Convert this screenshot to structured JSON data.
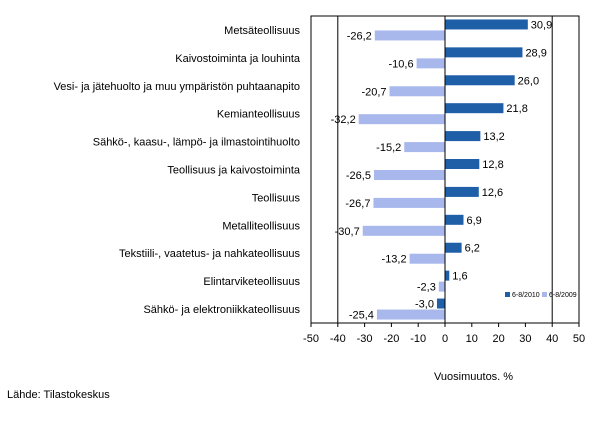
{
  "chart_data": {
    "type": "bar",
    "orientation": "horizontal",
    "categories": [
      "Metsäteollisuus",
      "Kaivostoiminta ja louhinta",
      "Vesi- ja jätehuolto ja muu ympäristön puhtaanapito",
      "Kemianteollisuus",
      "Sähkö-, kaasu-, lämpö- ja ilmastointihuolto",
      "Teollisuus ja kaivostoiminta",
      "Teollisuus",
      "Metalliteollisuus",
      "Tekstiili-, vaatetus- ja nahkateollisuus",
      "Elintarviketeollisuus",
      "Sähkö- ja elektroniikkateollisuus"
    ],
    "series": [
      {
        "name": "6-8/2010",
        "color": "#1f5fa8",
        "values": [
          30.9,
          28.9,
          26.0,
          21.8,
          13.2,
          12.8,
          12.6,
          6.9,
          6.2,
          1.6,
          -3.0
        ],
        "labels": [
          "30,9",
          "28,9",
          "26,0",
          "21,8",
          "13,2",
          "12,8",
          "12,6",
          "6,9",
          "6,2",
          "1,6",
          "-3,0"
        ]
      },
      {
        "name": "6-8/2009",
        "color": "#a9b8ec",
        "values": [
          -26.2,
          -10.6,
          -20.7,
          -32.2,
          -15.2,
          -26.5,
          -26.7,
          -30.7,
          -13.2,
          -2.3,
          -25.4
        ],
        "labels": [
          "-26,2",
          "-10,6",
          "-20,7",
          "-32,2",
          "-15,2",
          "-26,5",
          "-26,7",
          "-30,7",
          "-13,2",
          "-2,3",
          "-25,4"
        ]
      }
    ],
    "xlabel": "Vuosimuutos, %",
    "xlim": [
      -50,
      50
    ],
    "xticks": [
      -50,
      -40,
      -30,
      -20,
      -10,
      0,
      10,
      20,
      30,
      40,
      50
    ],
    "xtick_labels": [
      "-50",
      "-40",
      "-30",
      "-20",
      "-10",
      "0",
      "10",
      "20",
      "30",
      "40",
      "50"
    ],
    "vertical_gridlines": [
      -40,
      40
    ],
    "legend_position": "bottom-right inside plot"
  },
  "source": "Lähde: Tilastokeskus"
}
